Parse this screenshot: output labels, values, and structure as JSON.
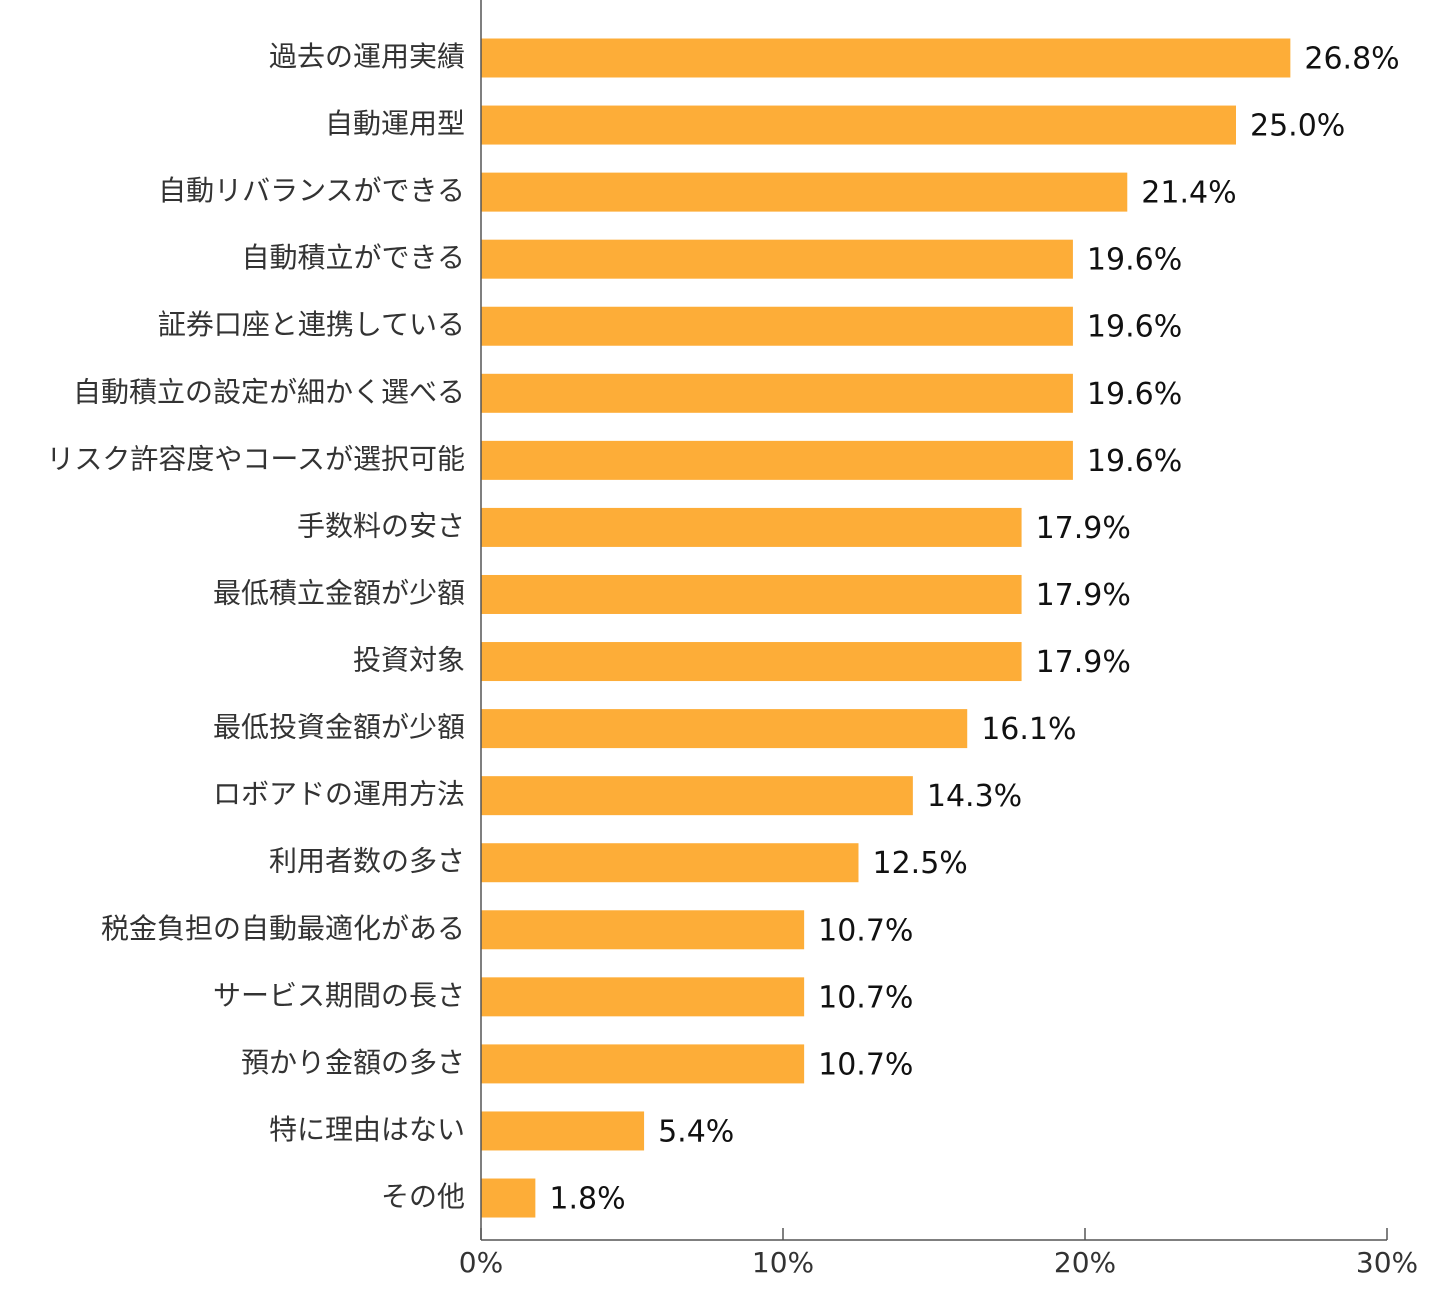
{
  "chart_data": {
    "type": "bar",
    "orientation": "horizontal",
    "categories": [
      "過去の運用実績",
      "自動運用型",
      "自動リバランスができる",
      "自動積立ができる",
      "証券口座と連携している",
      "自動積立の設定が細かく選べる",
      "リスク許容度やコースが選択可能",
      "手数料の安さ",
      "最低積立金額が少額",
      "投資対象",
      "最低投資金額が少額",
      "ロボアドの運用方法",
      "利用者数の多さ",
      "税金負担の自動最適化がある",
      "サービス期間の長さ",
      "預かり金額の多さ",
      "特に理由はない",
      "その他"
    ],
    "values": [
      26.8,
      25.0,
      21.4,
      19.6,
      19.6,
      19.6,
      19.6,
      17.9,
      17.9,
      17.9,
      16.1,
      14.3,
      12.5,
      10.7,
      10.7,
      10.7,
      5.4,
      1.8
    ],
    "value_labels": [
      "26.8%",
      "25.0%",
      "21.4%",
      "19.6%",
      "19.6%",
      "19.6%",
      "19.6%",
      "17.9%",
      "17.9%",
      "17.9%",
      "16.1%",
      "14.3%",
      "12.5%",
      "10.7%",
      "10.7%",
      "10.7%",
      "5.4%",
      "1.8%"
    ],
    "color": "#fdad38",
    "xlim": [
      0,
      30
    ],
    "xticks": [
      {
        "value": 0,
        "label": "0%"
      },
      {
        "value": 10,
        "label": "10%"
      },
      {
        "value": 20,
        "label": "20%"
      },
      {
        "value": 30,
        "label": "30%"
      }
    ]
  }
}
